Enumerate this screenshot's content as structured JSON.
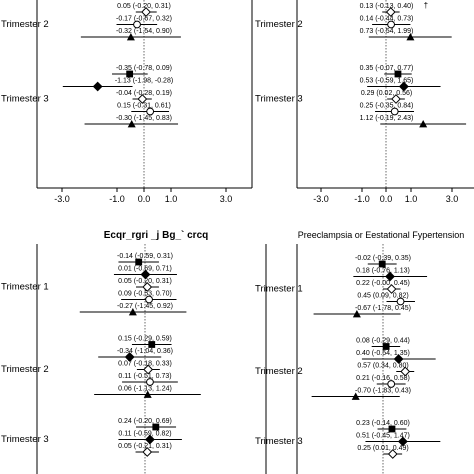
{
  "chart_data": [
    {
      "type": "forest",
      "title": "",
      "xlabel": "",
      "ylabel": "",
      "xlim": [
        -3.0,
        3.0
      ],
      "xticks": [
        "-3.0",
        "-1.0",
        "0.0",
        "1.0",
        "3.0"
      ],
      "reference_line": 0,
      "groups": [
        {
          "label": "Trimester 2",
          "rows": [
            {
              "est": 0.05,
              "lo": -0.2,
              "hi": 0.31,
              "text": "0.05  (-0.20, 0.31)",
              "marker": "open-diamond"
            },
            {
              "est": -0.17,
              "lo": -0.67,
              "hi": 0.32,
              "text": "-0.17  (-0.67, 0.32)",
              "marker": "open-circle"
            },
            {
              "est": -0.32,
              "lo": -1.54,
              "hi": 0.9,
              "text": "-0.32  (-1.54, 0.90)",
              "marker": "triangle"
            }
          ]
        },
        {
          "label": "Trimester 3",
          "rows": [
            {
              "est": -0.35,
              "lo": -0.78,
              "hi": 0.09,
              "text": "-0.35  (-0.78, 0.09)",
              "marker": "square"
            },
            {
              "est": -1.13,
              "lo": -1.98,
              "hi": -0.28,
              "text": "-1.13  (-1.98, -0.28)",
              "marker": "diamond"
            },
            {
              "est": -0.04,
              "lo": -0.28,
              "hi": 0.19,
              "text": "-0.04  (-0.28, 0.19)",
              "marker": "open-diamond"
            },
            {
              "est": 0.15,
              "lo": -0.31,
              "hi": 0.61,
              "text": "0.15  (-0.31, 0.61)",
              "marker": "open-circle"
            },
            {
              "est": -0.3,
              "lo": -1.45,
              "hi": 0.83,
              "text": "-0.30  (-1.45, 0.83)",
              "marker": "triangle"
            }
          ]
        }
      ]
    },
    {
      "type": "forest",
      "title": "",
      "xlabel": "",
      "ylabel": "",
      "xlim": [
        -3.0,
        3.0
      ],
      "xticks": [
        "-3.0",
        "-1.0",
        "0.0",
        "1.0",
        "3.0"
      ],
      "reference_line": 0,
      "groups": [
        {
          "label": "Trimester 2",
          "rows": [
            {
              "est": 0.13,
              "lo": -0.13,
              "hi": 0.4,
              "text": "0.13  (-0.13, 0.40)",
              "marker": "open-diamond",
              "flag": "†"
            },
            {
              "est": 0.14,
              "lo": -0.44,
              "hi": 0.73,
              "text": "0.14  (-0.44, 0.73)",
              "marker": "open-circle"
            },
            {
              "est": 0.73,
              "lo": -0.54,
              "hi": 1.99,
              "text": "0.73  (-0.54, 1.99)",
              "marker": "triangle"
            }
          ]
        },
        {
          "label": "Trimester 3",
          "rows": [
            {
              "est": 0.35,
              "lo": -0.07,
              "hi": 0.77,
              "text": "0.35  (-0.07, 0.77)",
              "marker": "square"
            },
            {
              "est": 0.53,
              "lo": -0.59,
              "hi": 1.65,
              "text": "0.53  (-0.59, 1.65)",
              "marker": "diamond"
            },
            {
              "est": 0.29,
              "lo": 0.02,
              "hi": 0.56,
              "text": "0.29  (0.02, 0.56)",
              "marker": "open-diamond"
            },
            {
              "est": 0.25,
              "lo": -0.35,
              "hi": 0.84,
              "text": "0.25  (-0.35, 0.84)",
              "marker": "open-circle"
            },
            {
              "est": 1.12,
              "lo": -0.19,
              "hi": 2.43,
              "text": "1.12  (-0.19, 2.43)",
              "marker": "triangle"
            }
          ]
        }
      ]
    },
    {
      "type": "forest",
      "title": "Ecqr_rgri _j Bg_` crcq",
      "xlabel": "",
      "ylabel": "",
      "xlim": [
        -3.0,
        3.0
      ],
      "reference_line": 0,
      "groups": [
        {
          "label": "Trimester 1",
          "rows": [
            {
              "est": -0.14,
              "lo": -0.59,
              "hi": 0.31,
              "text": "-0.14  (-0.59, 0.31)",
              "marker": "square"
            },
            {
              "est": 0.01,
              "lo": -0.69,
              "hi": 0.71,
              "text": "0.01  (-0.69, 0.71)",
              "marker": "diamond"
            },
            {
              "est": 0.05,
              "lo": -0.2,
              "hi": 0.31,
              "text": "0.05  (-0.20, 0.31)",
              "marker": "open-diamond"
            },
            {
              "est": 0.09,
              "lo": -0.53,
              "hi": 0.7,
              "text": "0.09  (-0.53, 0.70)",
              "marker": "open-circle"
            },
            {
              "est": -0.27,
              "lo": -1.45,
              "hi": 0.92,
              "text": "-0.27  (-1.45, 0.92)",
              "marker": "triangle"
            }
          ]
        },
        {
          "label": "Trimester 2",
          "rows": [
            {
              "est": 0.15,
              "lo": -0.29,
              "hi": 0.59,
              "text": "0.15  (-0.29, 0.59)",
              "marker": "square"
            },
            {
              "est": -0.34,
              "lo": -1.04,
              "hi": 0.36,
              "text": "-0.34  (-1.04, 0.36)",
              "marker": "diamond"
            },
            {
              "est": 0.07,
              "lo": -0.18,
              "hi": 0.33,
              "text": "0.07  (-0.18, 0.33)",
              "marker": "open-diamond"
            },
            {
              "est": 0.11,
              "lo": -0.51,
              "hi": 0.73,
              "text": "0.11  (-0.51, 0.73)",
              "marker": "open-circle"
            },
            {
              "est": 0.06,
              "lo": -1.13,
              "hi": 1.24,
              "text": "0.06  (-1.13, 1.24)",
              "marker": "triangle"
            }
          ]
        },
        {
          "label": "Trimester 3",
          "rows": [
            {
              "est": 0.24,
              "lo": -0.2,
              "hi": 0.69,
              "text": "0.24  (-0.20, 0.69)",
              "marker": "square"
            },
            {
              "est": 0.11,
              "lo": -0.59,
              "hi": 0.82,
              "text": "0.11  (-0.59, 0.82)",
              "marker": "diamond"
            },
            {
              "est": 0.05,
              "lo": -0.21,
              "hi": 0.31,
              "text": "0.05  (-0.21, 0.31)",
              "marker": "open-diamond"
            }
          ]
        }
      ]
    },
    {
      "type": "forest",
      "title": "Preeclampsia or Eestational Fypertension",
      "xlabel": "",
      "ylabel": "",
      "xlim": [
        -3.0,
        3.0
      ],
      "reference_line": 0,
      "groups": [
        {
          "label": "Trimester 1",
          "rows": [
            {
              "est": -0.02,
              "lo": -0.39,
              "hi": 0.35,
              "text": "-0.02  (-0.39, 0.35)",
              "marker": "square"
            },
            {
              "est": 0.18,
              "lo": -0.76,
              "hi": 1.13,
              "text": "0.18  (-0.76, 1.13)",
              "marker": "diamond"
            },
            {
              "est": 0.22,
              "lo": 0.0,
              "hi": 0.45,
              "text": "0.22  (-0.00, 0.45)",
              "marker": "open-diamond"
            },
            {
              "est": 0.45,
              "lo": 0.09,
              "hi": 0.82,
              "text": "0.45  (0.09, 0.82)",
              "marker": "open-circle"
            },
            {
              "est": -0.67,
              "lo": -1.78,
              "hi": 0.45,
              "text": "-0.67  (-1.78, 0.45)",
              "marker": "triangle"
            }
          ]
        },
        {
          "label": "Trimester 2",
          "rows": [
            {
              "est": 0.08,
              "lo": -0.29,
              "hi": 0.44,
              "text": "0.08  (-0.29, 0.44)",
              "marker": "square"
            },
            {
              "est": 0.4,
              "lo": -0.54,
              "hi": 1.35,
              "text": "0.40  (-0.54, 1.35)",
              "marker": "diamond"
            },
            {
              "est": 0.57,
              "lo": 0.34,
              "hi": 0.8,
              "text": "0.57  (0.34, 0.80)",
              "marker": "open-diamond"
            },
            {
              "est": 0.21,
              "lo": -0.16,
              "hi": 0.58,
              "text": "0.21  (-0.16, 0.58)",
              "marker": "open-circle"
            },
            {
              "est": -0.7,
              "lo": -1.83,
              "hi": 0.43,
              "text": "-0.70  (-1.83, 0.43)",
              "marker": "triangle"
            }
          ]
        },
        {
          "label": "Trimester 3",
          "rows": [
            {
              "est": 0.23,
              "lo": -0.14,
              "hi": 0.6,
              "text": "0.23  (-0.14, 0.60)",
              "marker": "square"
            },
            {
              "est": 0.51,
              "lo": -0.45,
              "hi": 1.47,
              "text": "0.51  (-0.45, 1.47)",
              "marker": "diamond"
            },
            {
              "est": 0.25,
              "lo": 0.01,
              "hi": 0.49,
              "text": "0.25  (0.01, 0.49)",
              "marker": "open-diamond"
            }
          ]
        }
      ]
    }
  ]
}
